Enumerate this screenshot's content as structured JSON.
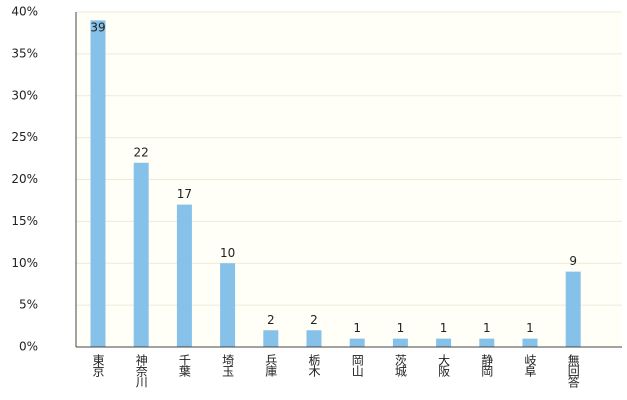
{
  "chart_data": {
    "type": "bar",
    "categories": [
      "東京",
      "神奈川",
      "千葉",
      "埼玉",
      "兵庫",
      "栃木",
      "岡山",
      "茨城",
      "大阪",
      "静岡",
      "岐阜",
      "無回答"
    ],
    "values": [
      39,
      22,
      17,
      10,
      2,
      2,
      1,
      1,
      1,
      1,
      1,
      9
    ],
    "color": "#85c1e9",
    "ylim": [
      0,
      40
    ],
    "yticks": [
      {
        "value": 0,
        "label": "0%"
      },
      {
        "value": 5,
        "label": "5%"
      },
      {
        "value": 10,
        "label": "10%"
      },
      {
        "value": 15,
        "label": "15%"
      },
      {
        "value": 20,
        "label": "20%"
      },
      {
        "value": 25,
        "label": "25%"
      },
      {
        "value": 30,
        "label": "30%"
      },
      {
        "value": 35,
        "label": "35%"
      },
      {
        "value": 40,
        "label": "40%"
      }
    ],
    "grid": true
  }
}
